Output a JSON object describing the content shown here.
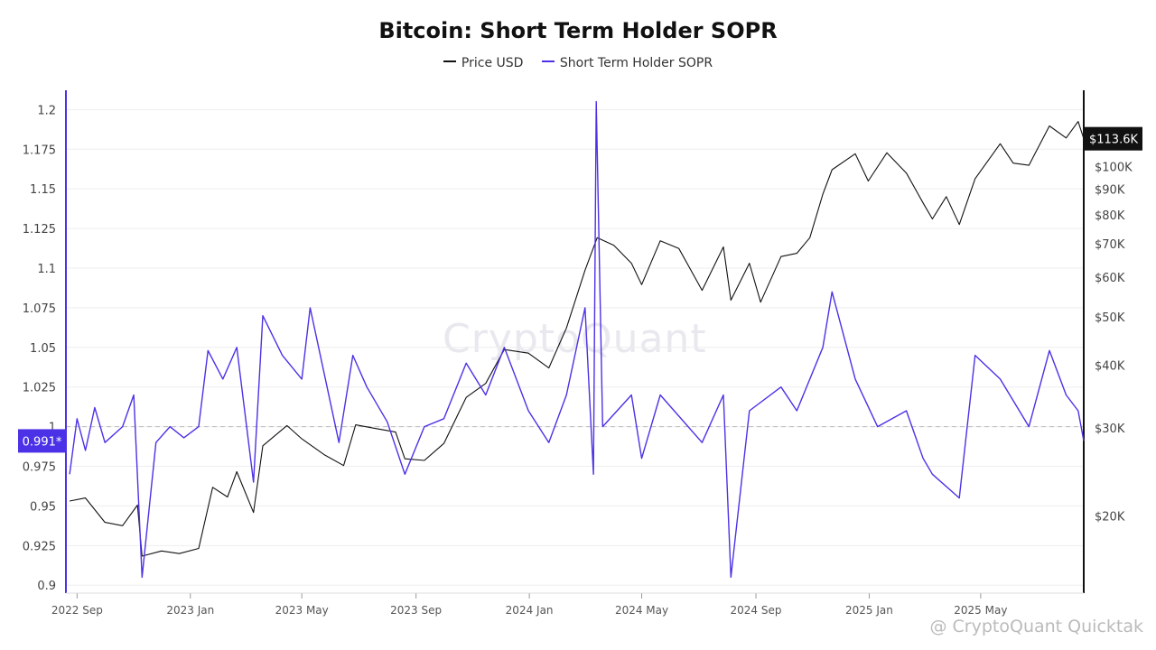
{
  "chart_data": {
    "type": "line",
    "title": "Bitcoin: Short Term Holder SOPR",
    "legend": {
      "placement": "top-center",
      "entries": [
        "Price USD",
        "Short Term Holder SOPR"
      ]
    },
    "x_tick_labels": [
      "2022 Sep",
      "2023 Jan",
      "2023 May",
      "2023 Sep",
      "2024 Jan",
      "2024 May",
      "2024 Sep",
      "2025 Jan",
      "2025 May"
    ],
    "x_range": [
      "2022-08-20",
      "2025-08-20"
    ],
    "left_axis": {
      "ylim": [
        0.895,
        1.215
      ],
      "ticks": [
        0.9,
        0.925,
        0.95,
        0.975,
        1,
        1.025,
        1.05,
        1.075,
        1.1,
        1.125,
        1.15,
        1.175,
        1.2
      ],
      "tick_labels": [
        "0.9",
        "0.925",
        "0.95",
        "0.975",
        "1",
        "1.025",
        "1.05",
        "1.075",
        "1.1",
        "1.125",
        "1.15",
        "1.175",
        "1.2"
      ],
      "current_value_label": "0.991*"
    },
    "right_axis": {
      "scale": "log",
      "ylim": [
        14000,
        145000
      ],
      "ticks": [
        20000,
        30000,
        40000,
        50000,
        60000,
        70000,
        80000,
        90000,
        100000
      ],
      "tick_labels": [
        "$20K",
        "$30K",
        "$40K",
        "$50K",
        "$60K",
        "$70K",
        "$80K",
        "$90K",
        "$100K"
      ],
      "current_value_label": "$113.6K"
    },
    "reference_line": 1,
    "series": [
      {
        "name": "Price USD",
        "color": "#111111",
        "axis": "right",
        "points": [
          [
            "2022-08-24",
            21400
          ],
          [
            "2022-09-10",
            21700
          ],
          [
            "2022-10-01",
            19400
          ],
          [
            "2022-10-20",
            19100
          ],
          [
            "2022-11-05",
            21000
          ],
          [
            "2022-11-10",
            16600
          ],
          [
            "2022-12-01",
            17000
          ],
          [
            "2022-12-20",
            16800
          ],
          [
            "2023-01-10",
            17200
          ],
          [
            "2023-01-25",
            22800
          ],
          [
            "2023-02-10",
            21800
          ],
          [
            "2023-02-20",
            24500
          ],
          [
            "2023-03-10",
            20300
          ],
          [
            "2023-03-20",
            27600
          ],
          [
            "2023-04-15",
            30300
          ],
          [
            "2023-05-01",
            28500
          ],
          [
            "2023-05-25",
            26500
          ],
          [
            "2023-06-15",
            25200
          ],
          [
            "2023-06-28",
            30400
          ],
          [
            "2023-07-15",
            30000
          ],
          [
            "2023-08-10",
            29400
          ],
          [
            "2023-08-20",
            26000
          ],
          [
            "2023-09-10",
            25800
          ],
          [
            "2023-10-01",
            27900
          ],
          [
            "2023-10-25",
            34500
          ],
          [
            "2023-11-15",
            36800
          ],
          [
            "2023-12-05",
            43000
          ],
          [
            "2023-12-31",
            42300
          ],
          [
            "2024-01-22",
            39500
          ],
          [
            "2024-02-10",
            47500
          ],
          [
            "2024-03-01",
            62000
          ],
          [
            "2024-03-14",
            72000
          ],
          [
            "2024-04-01",
            69500
          ],
          [
            "2024-04-20",
            64000
          ],
          [
            "2024-05-01",
            58000
          ],
          [
            "2024-05-21",
            71000
          ],
          [
            "2024-06-10",
            68500
          ],
          [
            "2024-07-05",
            56500
          ],
          [
            "2024-07-28",
            69000
          ],
          [
            "2024-08-05",
            54000
          ],
          [
            "2024-08-25",
            64000
          ],
          [
            "2024-09-06",
            53500
          ],
          [
            "2024-09-28",
            66000
          ],
          [
            "2024-10-15",
            67000
          ],
          [
            "2024-10-29",
            72000
          ],
          [
            "2024-11-12",
            88000
          ],
          [
            "2024-11-22",
            98500
          ],
          [
            "2024-12-17",
            106000
          ],
          [
            "2024-12-31",
            93500
          ],
          [
            "2025-01-20",
            106500
          ],
          [
            "2025-02-10",
            97000
          ],
          [
            "2025-02-28",
            84500
          ],
          [
            "2025-03-10",
            78500
          ],
          [
            "2025-03-25",
            87000
          ],
          [
            "2025-04-08",
            76500
          ],
          [
            "2025-04-25",
            94500
          ],
          [
            "2025-05-22",
            111000
          ],
          [
            "2025-06-05",
            101500
          ],
          [
            "2025-06-22",
            100500
          ],
          [
            "2025-07-14",
            120500
          ],
          [
            "2025-08-01",
            114000
          ],
          [
            "2025-08-14",
            123000
          ],
          [
            "2025-08-20",
            113600
          ]
        ]
      },
      {
        "name": "Short Term Holder SOPR",
        "color": "#4b32e6",
        "axis": "left",
        "points": [
          [
            "2022-08-24",
            0.97
          ],
          [
            "2022-09-01",
            1.005
          ],
          [
            "2022-09-10",
            0.985
          ],
          [
            "2022-09-20",
            1.012
          ],
          [
            "2022-10-01",
            0.99
          ],
          [
            "2022-10-20",
            1.0
          ],
          [
            "2022-11-01",
            1.02
          ],
          [
            "2022-11-10",
            0.905
          ],
          [
            "2022-11-25",
            0.99
          ],
          [
            "2022-12-10",
            1.0
          ],
          [
            "2022-12-25",
            0.993
          ],
          [
            "2023-01-10",
            1.0
          ],
          [
            "2023-01-20",
            1.048
          ],
          [
            "2023-02-05",
            1.03
          ],
          [
            "2023-02-20",
            1.05
          ],
          [
            "2023-03-10",
            0.965
          ],
          [
            "2023-03-20",
            1.07
          ],
          [
            "2023-04-10",
            1.045
          ],
          [
            "2023-05-01",
            1.03
          ],
          [
            "2023-05-10",
            1.075
          ],
          [
            "2023-06-10",
            0.99
          ],
          [
            "2023-06-25",
            1.045
          ],
          [
            "2023-07-10",
            1.025
          ],
          [
            "2023-08-01",
            1.003
          ],
          [
            "2023-08-20",
            0.97
          ],
          [
            "2023-09-10",
            1.0
          ],
          [
            "2023-10-01",
            1.005
          ],
          [
            "2023-10-25",
            1.04
          ],
          [
            "2023-11-15",
            1.02
          ],
          [
            "2023-12-05",
            1.05
          ],
          [
            "2023-12-31",
            1.01
          ],
          [
            "2024-01-22",
            0.99
          ],
          [
            "2024-02-10",
            1.02
          ],
          [
            "2024-03-01",
            1.075
          ],
          [
            "2024-03-10",
            0.97
          ],
          [
            "2024-03-13",
            1.205
          ],
          [
            "2024-03-20",
            1.0
          ],
          [
            "2024-04-20",
            1.02
          ],
          [
            "2024-05-01",
            0.98
          ],
          [
            "2024-05-21",
            1.02
          ],
          [
            "2024-07-05",
            0.99
          ],
          [
            "2024-07-28",
            1.02
          ],
          [
            "2024-08-05",
            0.905
          ],
          [
            "2024-08-25",
            1.01
          ],
          [
            "2024-09-28",
            1.025
          ],
          [
            "2024-10-15",
            1.01
          ],
          [
            "2024-11-12",
            1.05
          ],
          [
            "2024-11-22",
            1.085
          ],
          [
            "2024-12-17",
            1.03
          ],
          [
            "2025-01-10",
            1.0
          ],
          [
            "2025-02-10",
            1.01
          ],
          [
            "2025-02-28",
            0.98
          ],
          [
            "2025-03-10",
            0.97
          ],
          [
            "2025-04-08",
            0.955
          ],
          [
            "2025-04-25",
            1.045
          ],
          [
            "2025-05-22",
            1.03
          ],
          [
            "2025-06-22",
            1.0
          ],
          [
            "2025-07-14",
            1.048
          ],
          [
            "2025-08-01",
            1.02
          ],
          [
            "2025-08-14",
            1.01
          ],
          [
            "2025-08-20",
            0.991
          ]
        ]
      }
    ]
  },
  "watermark": "CryptoQuant",
  "footer_credit": "@ CryptoQuant Quicktak"
}
